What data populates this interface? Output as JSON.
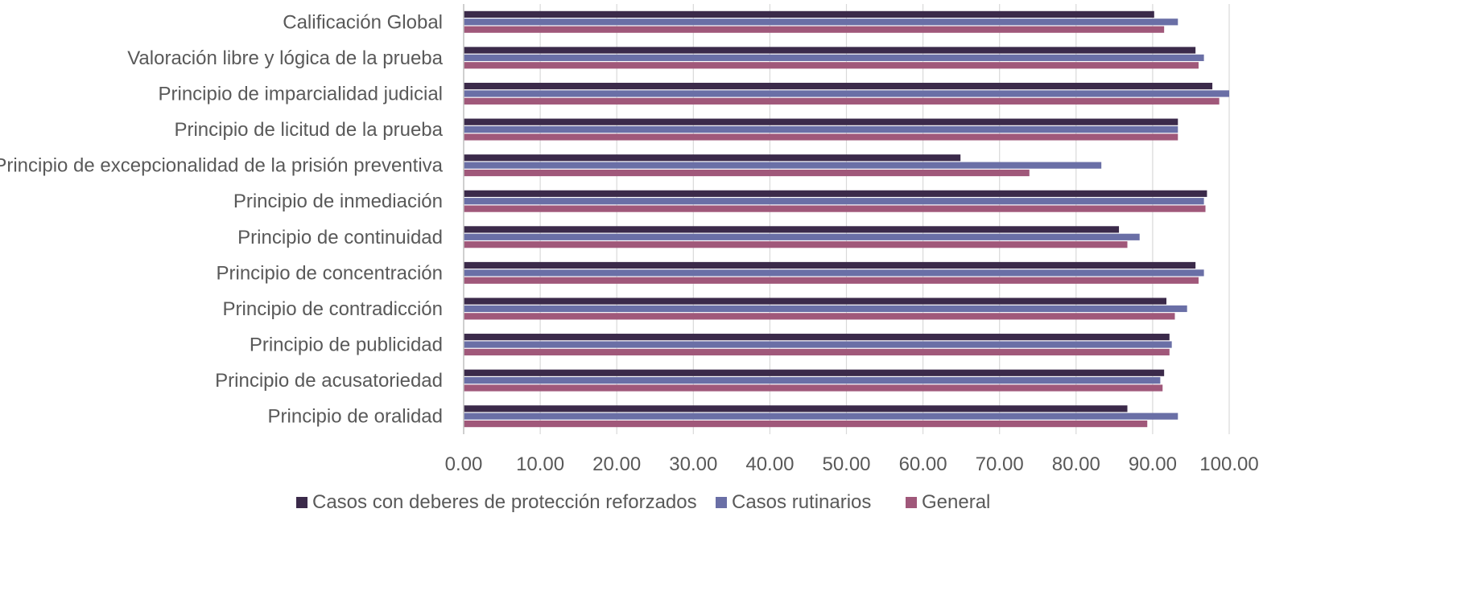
{
  "chart_data": {
    "type": "bar",
    "orientation": "horizontal",
    "categories": [
      "Calificación Global",
      "Valoración libre y lógica de la prueba",
      "Principio de imparcialidad judicial",
      "Principio de licitud de la prueba",
      "Principio de excepcionalidad de la prisión preventiva",
      "Principio de inmediación",
      "Principio de continuidad",
      "Principio de concentración",
      "Principio de contradicción",
      "Principio de publicidad",
      "Principio de acusatoriedad",
      "Principio de oralidad"
    ],
    "series": [
      {
        "name": "Casos con deberes de protección reforzados",
        "color": "#3b2a4a",
        "values": [
          90.2,
          95.6,
          97.8,
          93.3,
          64.9,
          97.1,
          85.6,
          95.6,
          91.8,
          92.2,
          91.5,
          86.7
        ]
      },
      {
        "name": "Casos rutinarios",
        "color": "#6a6fa6",
        "values": [
          93.3,
          96.7,
          100.0,
          93.3,
          83.3,
          96.7,
          88.3,
          96.7,
          94.5,
          92.5,
          91.0,
          93.3
        ]
      },
      {
        "name": "General",
        "color": "#a0587a",
        "values": [
          91.5,
          96.0,
          98.7,
          93.3,
          73.9,
          96.9,
          86.7,
          96.0,
          92.9,
          92.2,
          91.3,
          89.3
        ]
      }
    ],
    "xlim": [
      0,
      100
    ],
    "xticks": [
      0,
      10,
      20,
      30,
      40,
      50,
      60,
      70,
      80,
      90,
      100
    ],
    "tick_labels": [
      "0.00",
      "10.00",
      "20.00",
      "30.00",
      "40.00",
      "50.00",
      "60.00",
      "70.00",
      "80.00",
      "90.00",
      "100.00"
    ],
    "grid": true,
    "legend_position": "bottom",
    "title": "",
    "xlabel": "",
    "ylabel": ""
  }
}
